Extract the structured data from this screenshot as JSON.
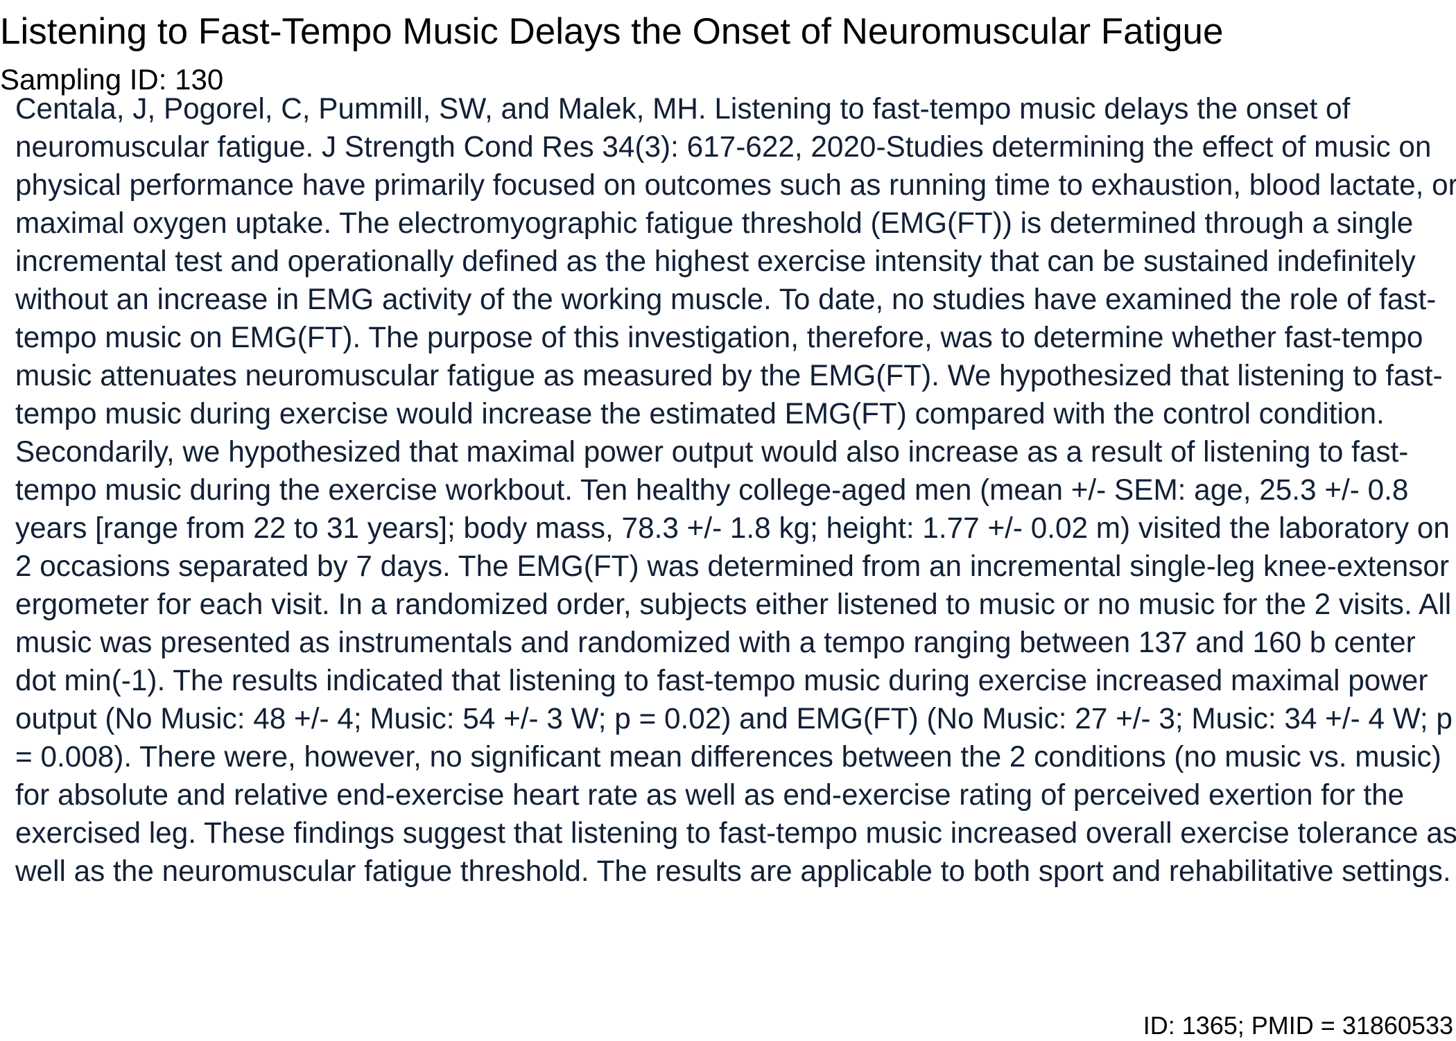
{
  "document": {
    "title": "Listening to Fast-Tempo Music Delays the Onset of Neuromuscular Fatigue",
    "sampling_id": "Sampling ID: 130",
    "abstract": "Centala, J, Pogorel, C, Pummill, SW, and Malek, MH. Listening to fast-tempo music delays the onset of neuromuscular fatigue. J Strength Cond Res 34(3): 617-622, 2020-Studies determining the effect of music on physical performance have primarily focused on outcomes such as running time to exhaustion, blood lactate, or maximal oxygen uptake. The electromyographic fatigue threshold (EMG(FT)) is determined through a single incremental test and operationally defined as the highest exercise intensity that can be sustained indefinitely without an increase in EMG activity of the working muscle. To date, no studies have examined the role of fast-tempo music on EMG(FT). The purpose of this investigation, therefore, was to determine whether fast-tempo music attenuates neuromuscular fatigue as measured by the EMG(FT). We hypothesized that listening to fast-tempo music during exercise would increase the estimated EMG(FT) compared with the control condition. Secondarily, we hypothesized that maximal power output would also increase as a result of listening to fast-tempo music during the exercise workbout. Ten healthy college-aged men (mean +/- SEM: age, 25.3 +/- 0.8 years [range from 22 to 31 years]; body mass, 78.3 +/- 1.8 kg; height: 1.77 +/- 0.02 m) visited the laboratory on 2 occasions separated by 7 days. The EMG(FT) was determined from an incremental single-leg knee-extensor ergometer for each visit. In a randomized order, subjects either listened to music or no music for the 2 visits. All music was presented as instrumentals and randomized with a tempo ranging between 137 and 160 b center dot min(-1). The results indicated that listening to fast-tempo music during exercise increased maximal power output (No Music: 48 +/- 4; Music: 54 +/- 3 W; p = 0.02) and EMG(FT) (No Music: 27 +/- 3; Music: 34 +/- 4 W; p = 0.008). There were, however, no significant mean differences between the 2 conditions (no music vs. music) for absolute and relative end-exercise heart rate as well as end-exercise rating of perceived exertion for the exercised leg. These findings suggest that listening to fast-tempo music increased overall exercise tolerance as well as the neuromuscular fatigue threshold. The results are applicable to both sport and rehabilitative settings.",
    "footer_id": "ID: 1365; PMID = 31860533"
  }
}
